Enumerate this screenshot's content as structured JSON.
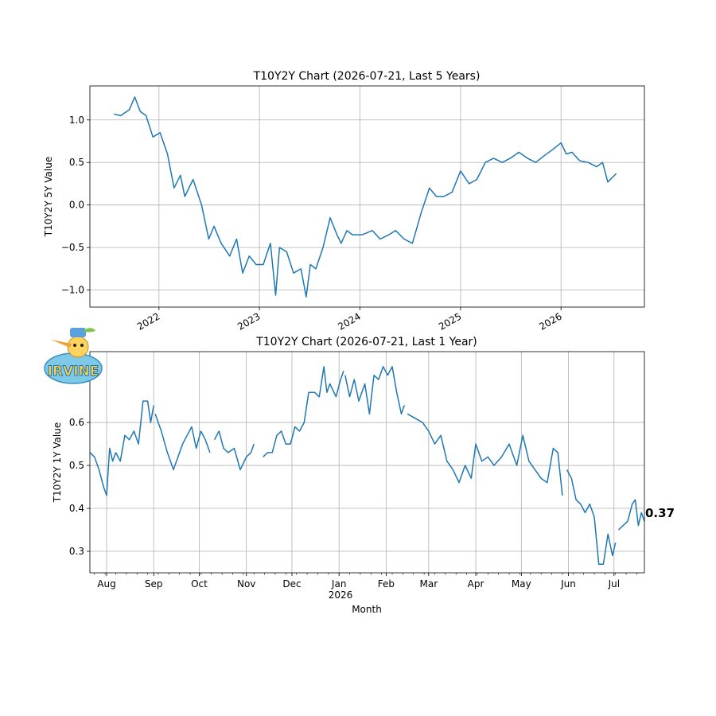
{
  "chart_data": [
    {
      "type": "line",
      "title": "T10Y2Y Chart (2026-07-21, Last 5 Years)",
      "xlabel": "",
      "ylabel": "T10Y2Y 5Y Value",
      "ylim": [
        -1.2,
        1.4
      ],
      "y_ticks": [
        -1.0,
        -0.5,
        0.0,
        0.5,
        1.0
      ],
      "y_tick_labels": [
        "−1.0",
        "−0.5",
        "0.0",
        "0.5",
        "1.0"
      ],
      "x_ticks": [
        {
          "x": "2022-01-01",
          "label": "2022"
        },
        {
          "x": "2023-01-01",
          "label": "2023"
        },
        {
          "x": "2024-01-01",
          "label": "2024"
        },
        {
          "x": "2025-01-01",
          "label": "2025"
        },
        {
          "x": "2026-01-01",
          "label": "2026"
        }
      ],
      "xlim": [
        "2021-04-25",
        "2026-10-31"
      ],
      "grid": true,
      "color": "#1f77b4",
      "series": [
        {
          "x": [
            "2021-07-21",
            "2021-08-15",
            "2021-09-15",
            "2021-10-05",
            "2021-10-25",
            "2021-11-15",
            "2021-12-10",
            "2022-01-05",
            "2022-02-01",
            "2022-02-25",
            "2022-03-20",
            "2022-04-05",
            "2022-05-05",
            "2022-06-05",
            "2022-07-01",
            "2022-07-20",
            "2022-08-15",
            "2022-09-15",
            "2022-10-10",
            "2022-11-01",
            "2022-11-25",
            "2022-12-20",
            "2023-01-15",
            "2023-02-10",
            "2023-03-01",
            "2023-03-15",
            "2023-04-10",
            "2023-05-05",
            "2023-06-01",
            "2023-06-20",
            "2023-07-05",
            "2023-07-25",
            "2023-08-20",
            "2023-09-15",
            "2023-10-10",
            "2023-10-25",
            "2023-11-15",
            "2023-12-05",
            "2024-01-10",
            "2024-02-15",
            "2024-03-15",
            "2024-04-15",
            "2024-05-10",
            "2024-06-10",
            "2024-07-10",
            "2024-08-10",
            "2024-09-10",
            "2024-10-05",
            "2024-11-01",
            "2024-12-01",
            "2025-01-01",
            "2025-02-01",
            "2025-03-01",
            "2025-04-01",
            "2025-05-01",
            "2025-06-01",
            "2025-07-01",
            "2025-08-01",
            "2025-09-01",
            "2025-10-01",
            "2025-11-01",
            "2025-12-01",
            "2026-01-01",
            "2026-01-20",
            "2026-02-10",
            "2026-03-10",
            "2026-04-10",
            "2026-05-10",
            "2026-06-01",
            "2026-06-20",
            "2026-07-21"
          ],
          "y": [
            1.07,
            1.05,
            1.12,
            1.27,
            1.1,
            1.05,
            0.8,
            0.85,
            0.6,
            0.2,
            0.35,
            0.1,
            0.3,
            0.0,
            -0.4,
            -0.25,
            -0.45,
            -0.6,
            -0.4,
            -0.8,
            -0.6,
            -0.7,
            -0.7,
            -0.45,
            -1.06,
            -0.5,
            -0.55,
            -0.8,
            -0.75,
            -1.08,
            -0.7,
            -0.75,
            -0.5,
            -0.15,
            -0.35,
            -0.45,
            -0.3,
            -0.35,
            -0.35,
            -0.3,
            -0.4,
            -0.35,
            -0.3,
            -0.4,
            -0.45,
            -0.1,
            0.2,
            0.1,
            0.1,
            0.15,
            0.4,
            0.25,
            0.3,
            0.5,
            0.55,
            0.5,
            0.55,
            0.62,
            0.55,
            0.5,
            0.58,
            0.65,
            0.73,
            0.6,
            0.62,
            0.52,
            0.5,
            0.45,
            0.5,
            0.27,
            0.37
          ]
        }
      ]
    },
    {
      "type": "line",
      "title": "T10Y2Y Chart (2026-07-21, Last 1 Year)",
      "xlabel": "Month",
      "ylabel": "T10Y2Y 1Y Value",
      "ylim": [
        0.25,
        0.765
      ],
      "y_ticks": [
        0.3,
        0.4,
        0.5,
        0.6
      ],
      "y_tick_labels": [
        "0.3",
        "0.4",
        "0.5",
        "0.6"
      ],
      "x_ticks": [
        {
          "x": "2025-08-01",
          "label": "Aug"
        },
        {
          "x": "2025-09-01",
          "label": "Sep"
        },
        {
          "x": "2025-10-01",
          "label": "Oct"
        },
        {
          "x": "2025-11-01",
          "label": "Nov"
        },
        {
          "x": "2025-12-01",
          "label": "Dec"
        },
        {
          "x": "2026-01-01",
          "label": "Jan"
        },
        {
          "x": "2026-02-01",
          "label": "Feb"
        },
        {
          "x": "2026-03-01",
          "label": "Mar"
        },
        {
          "x": "2026-04-01",
          "label": "Apr"
        },
        {
          "x": "2026-05-01",
          "label": "May"
        },
        {
          "x": "2026-06-01",
          "label": "Jun"
        },
        {
          "x": "2026-07-01",
          "label": "Jul"
        }
      ],
      "year_label": "2026",
      "xlim": [
        "2025-07-21",
        "2026-07-21"
      ],
      "grid": true,
      "color": "#1f77b4",
      "last_value_label": "0.37",
      "series": [
        {
          "segments": [
            {
              "x": [
                "2025-07-21",
                "2025-07-24",
                "2025-07-27",
                "2025-07-30",
                "2025-08-01",
                "2025-08-03",
                "2025-08-05",
                "2025-08-07",
                "2025-08-10",
                "2025-08-13",
                "2025-08-16",
                "2025-08-19",
                "2025-08-22",
                "2025-08-25",
                "2025-08-28",
                "2025-08-30",
                "2025-09-01"
              ],
              "y": [
                0.53,
                0.52,
                0.49,
                0.45,
                0.43,
                0.54,
                0.51,
                0.53,
                0.51,
                0.57,
                0.56,
                0.58,
                0.55,
                0.65,
                0.65,
                0.6,
                0.64
              ]
            },
            {
              "x": [
                "2025-09-02",
                "2025-09-06",
                "2025-09-10",
                "2025-09-14",
                "2025-09-17",
                "2025-09-20",
                "2025-09-23",
                "2025-09-26",
                "2025-09-29",
                "2025-10-02",
                "2025-10-05",
                "2025-10-08"
              ],
              "y": [
                0.62,
                0.58,
                0.53,
                0.49,
                0.52,
                0.55,
                0.57,
                0.59,
                0.54,
                0.58,
                0.56,
                0.53
              ]
            },
            {
              "x": [
                "2025-10-11",
                "2025-10-14",
                "2025-10-17",
                "2025-10-20",
                "2025-10-24",
                "2025-10-28",
                "2025-11-01",
                "2025-11-04",
                "2025-11-06"
              ],
              "y": [
                0.56,
                0.58,
                0.54,
                0.53,
                0.54,
                0.49,
                0.52,
                0.53,
                0.55
              ]
            },
            {
              "x": [
                "2025-11-12",
                "2025-11-15",
                "2025-11-18",
                "2025-11-21",
                "2025-11-24",
                "2025-11-27",
                "2025-11-30",
                "2025-12-03",
                "2025-12-06",
                "2025-12-09",
                "2025-12-12",
                "2025-12-16",
                "2025-12-19",
                "2025-12-22",
                "2025-12-24",
                "2025-12-26",
                "2025-12-30",
                "2026-01-02",
                "2026-01-04"
              ],
              "y": [
                0.52,
                0.53,
                0.53,
                0.57,
                0.58,
                0.55,
                0.55,
                0.59,
                0.58,
                0.6,
                0.67,
                0.67,
                0.66,
                0.73,
                0.67,
                0.69,
                0.66,
                0.7,
                0.72
              ]
            },
            {
              "x": [
                "2026-01-05",
                "2026-01-08",
                "2026-01-11",
                "2026-01-14",
                "2026-01-18",
                "2026-01-21",
                "2026-01-24",
                "2026-01-27",
                "2026-01-30",
                "2026-02-02",
                "2026-02-05",
                "2026-02-08",
                "2026-02-11",
                "2026-02-13"
              ],
              "y": [
                0.71,
                0.66,
                0.7,
                0.65,
                0.69,
                0.62,
                0.71,
                0.7,
                0.73,
                0.71,
                0.73,
                0.67,
                0.62,
                0.64
              ]
            },
            {
              "x": [
                "2026-02-15",
                "2026-02-20",
                "2026-02-25",
                "2026-03-01",
                "2026-03-05",
                "2026-03-09",
                "2026-03-13",
                "2026-03-17",
                "2026-03-21",
                "2026-03-25",
                "2026-03-29",
                "2026-04-01",
                "2026-04-05",
                "2026-04-09",
                "2026-04-13",
                "2026-04-18",
                "2026-04-23",
                "2026-04-28",
                "2026-05-02",
                "2026-05-06",
                "2026-05-10",
                "2026-05-14",
                "2026-05-18",
                "2026-05-22",
                "2026-05-25",
                "2026-05-28"
              ],
              "y": [
                0.62,
                0.61,
                0.6,
                0.58,
                0.55,
                0.57,
                0.51,
                0.49,
                0.46,
                0.5,
                0.47,
                0.55,
                0.51,
                0.52,
                0.5,
                0.52,
                0.55,
                0.5,
                0.57,
                0.51,
                0.49,
                0.47,
                0.46,
                0.54,
                0.53,
                0.43
              ]
            },
            {
              "x": [
                "2026-05-31",
                "2026-06-03",
                "2026-06-06",
                "2026-06-09",
                "2026-06-12",
                "2026-06-15",
                "2026-06-18",
                "2026-06-21",
                "2026-06-24",
                "2026-06-27",
                "2026-06-30",
                "2026-07-02"
              ],
              "y": [
                0.49,
                0.47,
                0.42,
                0.41,
                0.39,
                0.41,
                0.38,
                0.27,
                0.27,
                0.34,
                0.29,
                0.32
              ]
            },
            {
              "x": [
                "2026-07-04",
                "2026-07-07",
                "2026-07-10",
                "2026-07-13",
                "2026-07-15",
                "2026-07-17",
                "2026-07-19",
                "2026-07-21"
              ],
              "y": [
                0.35,
                0.36,
                0.37,
                0.41,
                0.42,
                0.36,
                0.39,
                0.37
              ]
            }
          ]
        }
      ]
    }
  ]
}
